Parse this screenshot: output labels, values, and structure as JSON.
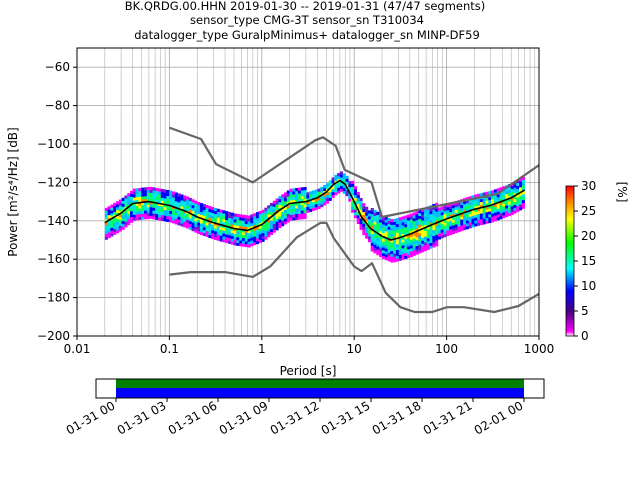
{
  "title_lines": [
    "BK.QRDG.00.HHN   2019-01-30 -- 2019-01-31  (47/47 segments)",
    "sensor_type CMG-3T sensor_sn T310034",
    "datalogger_type GuralpMinimus+ datalogger_sn MINP-DF59"
  ],
  "chart_data": [
    {
      "type": "heatmap",
      "xlabel": "Period [s]",
      "ylabel": "Power [m²/s⁴/Hz] [dB]",
      "xscale": "log",
      "xlim": [
        0.01,
        1000
      ],
      "ylim": [
        -200,
        -50
      ],
      "x_ticks": [
        0.01,
        0.1,
        1,
        10,
        100,
        1000
      ],
      "x_tick_labels": [
        "0.01",
        "0.1",
        "1",
        "10",
        "100",
        "1000"
      ],
      "y_ticks": [
        -200,
        -180,
        -160,
        -140,
        -120,
        -100,
        -80,
        -60
      ],
      "y_tick_labels": [
        "−200",
        "−180",
        "−160",
        "−140",
        "−120",
        "−100",
        "−80",
        "−60"
      ],
      "grid": true,
      "colorbar": {
        "label": "[%]",
        "range": [
          0,
          30
        ],
        "ticks": [
          0,
          5,
          10,
          15,
          20,
          25,
          30
        ],
        "colormap": [
          "#ffffff",
          "#ff00ff",
          "#4b0082",
          "#0000ff",
          "#00ffff",
          "#00ff00",
          "#ffff00",
          "#ff8000",
          "#ff0000"
        ]
      },
      "series": [
        {
          "name": "NHNM",
          "color": "#666666",
          "x": [
            0.1,
            0.22,
            0.32,
            0.8,
            3.8,
            4.6,
            6.3,
            7.9,
            15.4,
            20,
            354.8,
            1000
          ],
          "y": [
            -91.5,
            -97.4,
            -110.5,
            -120,
            -98,
            -96.5,
            -101,
            -113.5,
            -120,
            -138,
            -126,
            -111
          ]
        },
        {
          "name": "NLNM",
          "color": "#666666",
          "x": [
            0.1,
            0.17,
            0.4,
            0.8,
            1.24,
            2.4,
            4.3,
            5,
            6,
            10,
            12,
            15.6,
            21.9,
            31.6,
            45,
            70,
            101,
            154,
            328,
            600,
            1000
          ],
          "y": [
            -168,
            -166.7,
            -166.7,
            -169.2,
            -163.7,
            -148.6,
            -141.1,
            -141.1,
            -149,
            -163.8,
            -166.2,
            -162.1,
            -177.5,
            -185,
            -187.5,
            -187.5,
            -185,
            -185,
            -187.5,
            -184.4,
            -178
          ]
        },
        {
          "name": "mean",
          "color": "#000000",
          "x": [
            0.02,
            0.03,
            0.04,
            0.06,
            0.1,
            0.15,
            0.2,
            0.3,
            0.5,
            0.7,
            1,
            1.5,
            2,
            3,
            4,
            5,
            6,
            7,
            8,
            10,
            12,
            15,
            20,
            25,
            30,
            40,
            50,
            70,
            100,
            150,
            200,
            300,
            500,
            700
          ],
          "y": [
            -141,
            -136,
            -131,
            -130,
            -132,
            -135,
            -138,
            -141,
            -144,
            -145,
            -142,
            -135,
            -131,
            -130,
            -128,
            -125,
            -121,
            -119,
            -121,
            -130,
            -138,
            -144,
            -148,
            -150,
            -149,
            -147,
            -145,
            -142,
            -139,
            -136,
            -134,
            -132,
            -128,
            -124
          ]
        }
      ]
    },
    {
      "type": "timeline",
      "x_tick_labels": [
        "01-31 00",
        "01-31 03",
        "01-31 06",
        "01-31 09",
        "01-31 12",
        "01-31 15",
        "01-31 18",
        "01-31 21",
        "02-01 00"
      ],
      "bars": [
        {
          "name": "data",
          "color": "#008000",
          "start": "01-31 00",
          "end": "02-01 00"
        },
        {
          "name": "used",
          "color": "#0000ff",
          "start": "01-31 00",
          "end": "02-01 00"
        }
      ]
    }
  ]
}
